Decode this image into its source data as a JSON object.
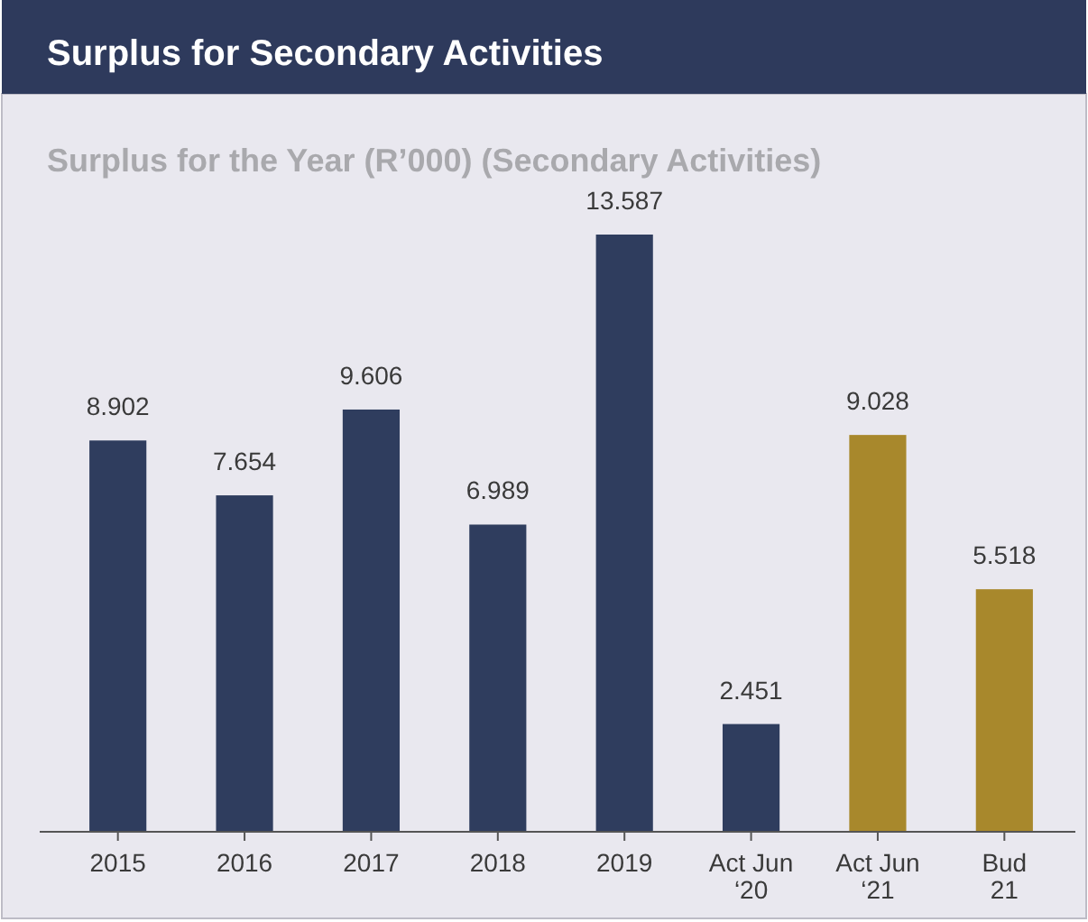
{
  "chart_data": {
    "type": "bar",
    "title": "Surplus for Secondary Activities",
    "subtitle": "Surplus for the Year (R’000) (Secondary Activities)",
    "categories": [
      "2015",
      "2016",
      "2017",
      "2018",
      "2019",
      "Act Jun ‘20",
      "Act Jun ‘21",
      "Bud 21"
    ],
    "values": [
      8.902,
      7.654,
      9.606,
      6.989,
      13.587,
      2.451,
      9.028,
      5.518
    ],
    "colors": [
      "#2f3d5e",
      "#2f3d5e",
      "#2f3d5e",
      "#2f3d5e",
      "#2f3d5e",
      "#2f3d5e",
      "#a8882c",
      "#a8882c"
    ],
    "data_labels": true
  }
}
